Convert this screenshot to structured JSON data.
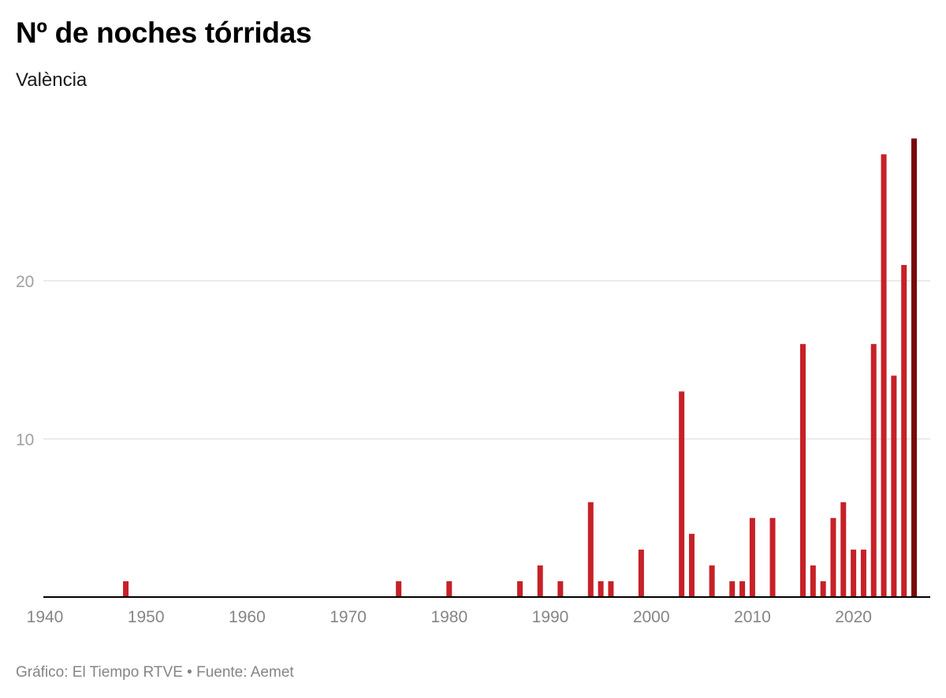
{
  "header": {
    "title": "Nº de noches tórridas",
    "subtitle": "València"
  },
  "footer": {
    "credit": "Gráfico: El Tiempo RTVE • Fuente: Aemet"
  },
  "colors": {
    "bar": "#c62127",
    "bar_highlight": "#7a0808",
    "grid": "#e3e3e3",
    "axis": "#000000"
  },
  "chart_data": {
    "type": "bar",
    "title": "Nº de noches tórridas",
    "subtitle": "València",
    "xlabel": "",
    "ylabel": "",
    "xlim": [
      1940,
      2026
    ],
    "ylim": [
      0,
      29
    ],
    "x_ticks": [
      1940,
      1950,
      1960,
      1970,
      1980,
      1990,
      2000,
      2010,
      2020
    ],
    "y_ticks": [
      10,
      20
    ],
    "grid": true,
    "highlight_last": true,
    "x": [
      1948,
      1975,
      1980,
      1987,
      1989,
      1991,
      1994,
      1995,
      1996,
      1999,
      2003,
      2004,
      2006,
      2008,
      2009,
      2010,
      2012,
      2015,
      2016,
      2017,
      2018,
      2019,
      2020,
      2021,
      2022,
      2023,
      2024,
      2025,
      2026
    ],
    "values": [
      1,
      1,
      1,
      1,
      2,
      1,
      6,
      1,
      1,
      3,
      13,
      4,
      2,
      1,
      1,
      5,
      5,
      16,
      2,
      1,
      5,
      6,
      3,
      3,
      16,
      28,
      14,
      21,
      29
    ]
  }
}
